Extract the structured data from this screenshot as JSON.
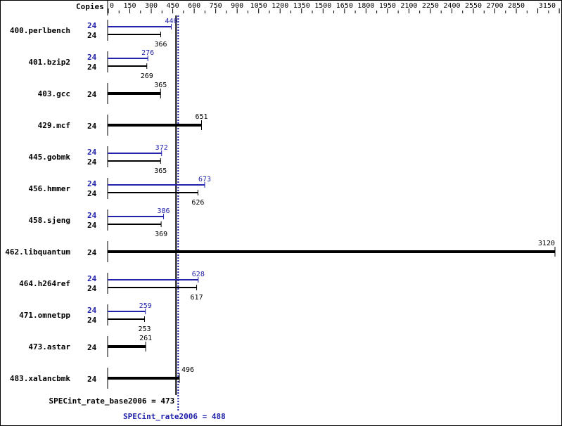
{
  "chart_data": {
    "type": "bar",
    "orientation": "horizontal",
    "copies_header": "Copies",
    "xlim": [
      0,
      3150
    ],
    "x_ticks": [
      0,
      150,
      300,
      450,
      600,
      750,
      900,
      1050,
      1200,
      1350,
      1500,
      1650,
      1800,
      1950,
      2100,
      2250,
      2400,
      2550,
      2700,
      2850,
      3150
    ],
    "grid": false,
    "colors": {
      "base": "#000000",
      "peak": "#2222aa"
    },
    "benchmarks": [
      {
        "name": "400.perlbench",
        "base_copies": "24",
        "peak_copies": "24",
        "base": 366,
        "peak": 440
      },
      {
        "name": "401.bzip2",
        "base_copies": "24",
        "peak_copies": "24",
        "base": 269,
        "peak": 276
      },
      {
        "name": "403.gcc",
        "base_copies": "24",
        "base": 365
      },
      {
        "name": "429.mcf",
        "base_copies": "24",
        "base": 651
      },
      {
        "name": "445.gobmk",
        "base_copies": "24",
        "peak_copies": "24",
        "base": 365,
        "peak": 372
      },
      {
        "name": "456.hmmer",
        "base_copies": "24",
        "peak_copies": "24",
        "base": 626,
        "peak": 673
      },
      {
        "name": "458.sjeng",
        "base_copies": "24",
        "peak_copies": "24",
        "base": 369,
        "peak": 386
      },
      {
        "name": "462.libquantum",
        "base_copies": "24",
        "base": 3120
      },
      {
        "name": "464.h264ref",
        "base_copies": "24",
        "peak_copies": "24",
        "base": 617,
        "peak": 628
      },
      {
        "name": "471.omnetpp",
        "base_copies": "24",
        "peak_copies": "24",
        "base": 253,
        "peak": 259
      },
      {
        "name": "473.astar",
        "base_copies": "24",
        "base": 261
      },
      {
        "name": "483.xalancbmk",
        "base_copies": "24",
        "base": 496
      }
    ],
    "base_summary": {
      "label": "SPECint_rate_base2006 = 473",
      "value": 473
    },
    "peak_summary": {
      "label": "SPECint_rate2006 = 488",
      "value": 488
    }
  }
}
